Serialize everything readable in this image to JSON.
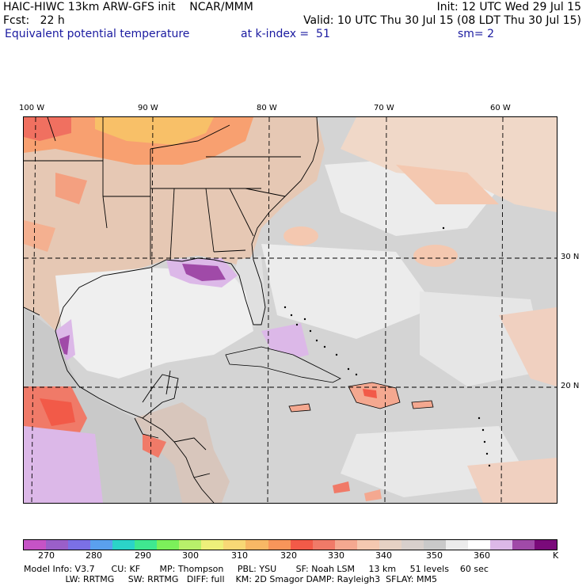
{
  "header": {
    "line1_left": "HAIC-HIWC 13km ARW-GFS init    NCAR/MMM",
    "line1_right": "Init: 12 UTC Wed 29 Jul 15",
    "line2_left": "Fcst:   22 h",
    "line2_right": "Valid: 10 UTC Thu 30 Jul 15 (08 LDT Thu 30 Jul 15)",
    "line3_field": "Equivalent potential temperature",
    "line3_level": "at k-index =  51",
    "line3_smooth": "sm= 2"
  },
  "map": {
    "lon_labels": [
      "100 W",
      "90 W",
      "80 W",
      "70 W",
      "60 W"
    ],
    "lat_labels": [
      "30 N",
      "20 N"
    ]
  },
  "colorbar": {
    "unit": "K",
    "tick_labels": [
      "270",
      "280",
      "290",
      "300",
      "310",
      "320",
      "330",
      "340",
      "350",
      "360"
    ],
    "colors": [
      "#c653c6",
      "#9a5fc9",
      "#7b70e6",
      "#5aa0ee",
      "#2bd3c8",
      "#3fe890",
      "#7cf05a",
      "#b8f06a",
      "#eef07a",
      "#f8d875",
      "#f8b865",
      "#f8955a",
      "#f25a48",
      "#f07a68",
      "#f4a890",
      "#f4c8b0",
      "#e6d2c4",
      "#d8d0cc",
      "#c9c9c9",
      "#ececec",
      "#ffffff",
      "#dcb8e8",
      "#a04aa8",
      "#7a0a7a"
    ]
  },
  "model_info": {
    "line1": "Model Info: V3.7      CU: KF       MP: Thompson     PBL: YSU       SF: Noah LSM     13 km     51 levels    60 sec",
    "line2": "               LW: RRTMG     SW: RRTMG   DIFF: full    KM: 2D Smagor DAMP: Rayleigh3  SFLAY: MM5"
  }
}
